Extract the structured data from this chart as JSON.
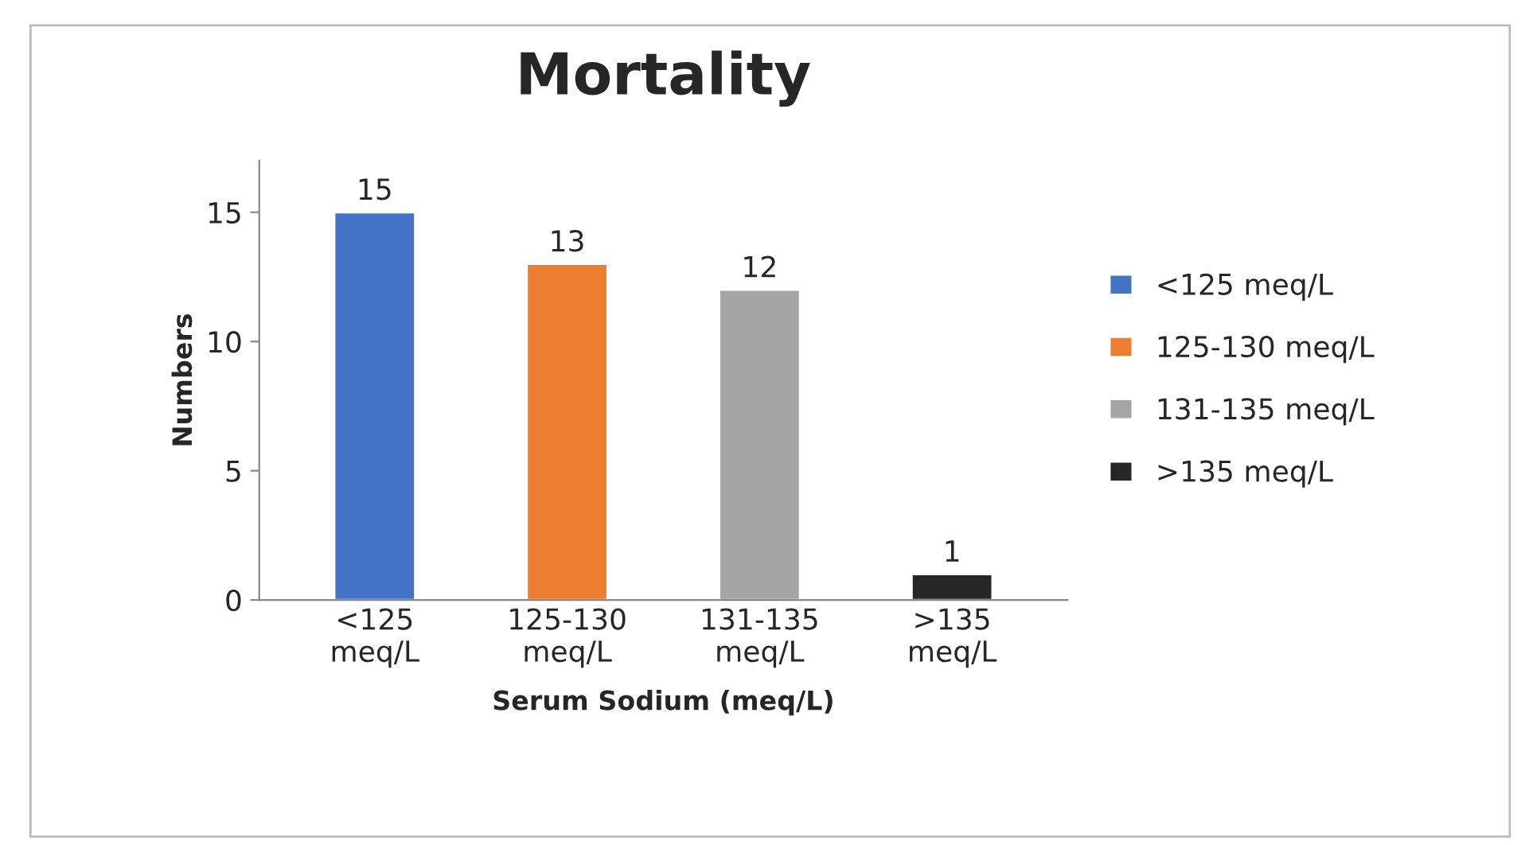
{
  "chart_data": {
    "type": "bar",
    "title": "Mortality",
    "xlabel": "Serum Sodium (meq/L)",
    "ylabel": "Numbers",
    "categories": [
      "<125 meq/L",
      "125-130 meq/L",
      "131-135 meq/L",
      ">135 meq/L"
    ],
    "series": [
      {
        "name": "<125 meq/L",
        "color": "#4472c4",
        "values": [
          15,
          null,
          null,
          null
        ]
      },
      {
        "name": "125-130 meq/L",
        "color": "#ed7d31",
        "values": [
          null,
          13,
          null,
          null
        ]
      },
      {
        "name": "131-135 meq/L",
        "color": "#a5a5a5",
        "values": [
          null,
          null,
          12,
          null
        ]
      },
      {
        "name": ">135 meq/L",
        "color": "#262626",
        "values": [
          null,
          null,
          null,
          1
        ]
      }
    ],
    "ylim": [
      0,
      17
    ],
    "yticks": [
      0,
      5,
      10,
      15
    ],
    "data_labels": true,
    "legend": "right",
    "grid": false
  }
}
